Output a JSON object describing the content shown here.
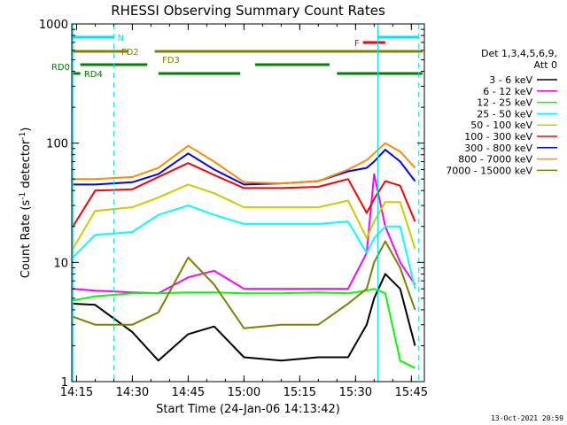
{
  "chart_data": {
    "type": "line",
    "title": "RHESSI Observing Summary Count Rates",
    "xlabel": "Start Time (24-Jan-06 14:13:42)",
    "ylabel": "Count Rate (s⁻¹ detector⁻¹)",
    "ylabel_main": "Count Rate (s",
    "ylabel_sup1": "-1",
    "ylabel_mid": " detector",
    "ylabel_sup2": "-1",
    "ylabel_end": ")",
    "y_scale": "log",
    "ylim": [
      1,
      1000
    ],
    "xlim": [
      "14:13:42",
      "15:48:30"
    ],
    "x_ticks": [
      "14:15",
      "14:30",
      "14:45",
      "15:00",
      "15:15",
      "15:30",
      "15:45"
    ],
    "y_ticks": [
      "1",
      "10",
      "100",
      "1000"
    ],
    "legend": {
      "placement": "right",
      "header_line1": "Det 1,3,4,5,6,9,",
      "header_line2": "Att 0"
    },
    "timestamp": "13-Oct-2021 20:59",
    "series": [
      {
        "name": "3 - 6 keV",
        "color": "#000000",
        "x": [
          "14:14",
          "14:20",
          "14:30",
          "14:37",
          "14:45",
          "14:52",
          "15:00",
          "15:10",
          "15:20",
          "15:28",
          "15:33",
          "15:35",
          "15:38",
          "15:42",
          "15:46"
        ],
        "y": [
          4.5,
          4.4,
          2.6,
          1.5,
          2.5,
          2.9,
          1.6,
          1.5,
          1.6,
          1.6,
          3,
          5,
          8,
          6,
          2
        ]
      },
      {
        "name": "6 - 12 keV",
        "color": "#ff00ff",
        "x": [
          "14:14",
          "14:20",
          "14:30",
          "14:37",
          "14:45",
          "14:52",
          "15:00",
          "15:10",
          "15:20",
          "15:28",
          "15:33",
          "15:35",
          "15:38",
          "15:42",
          "15:46"
        ],
        "y": [
          6,
          5.8,
          5.6,
          5.5,
          7.5,
          8.5,
          6,
          6,
          6,
          6,
          12,
          55,
          20,
          10,
          6.5
        ]
      },
      {
        "name": "12 - 25 keV",
        "color": "#00ff00",
        "x": [
          "14:14",
          "14:20",
          "14:30",
          "14:37",
          "14:45",
          "14:52",
          "15:00",
          "15:10",
          "15:20",
          "15:28",
          "15:33",
          "15:35",
          "15:38",
          "15:42",
          "15:46"
        ],
        "y": [
          4.8,
          5.2,
          5.5,
          5.5,
          5.6,
          5.6,
          5.5,
          5.5,
          5.6,
          5.5,
          5.8,
          6,
          5.5,
          1.5,
          1.3
        ]
      },
      {
        "name": "25 - 50 keV",
        "color": "#00ffff",
        "x": [
          "14:14",
          "14:20",
          "14:30",
          "14:37",
          "14:45",
          "14:52",
          "15:00",
          "15:10",
          "15:20",
          "15:28",
          "15:33",
          "15:35",
          "15:38",
          "15:42",
          "15:46"
        ],
        "y": [
          11,
          17,
          18,
          25,
          30,
          25,
          21,
          21,
          21,
          22,
          12,
          16,
          20,
          20,
          6
        ]
      },
      {
        "name": "50 - 100 keV",
        "color": "#cccc00",
        "x": [
          "14:14",
          "14:20",
          "14:30",
          "14:37",
          "14:45",
          "14:52",
          "15:00",
          "15:10",
          "15:20",
          "15:28",
          "15:33",
          "15:35",
          "15:38",
          "15:42",
          "15:46"
        ],
        "y": [
          13,
          27,
          29,
          35,
          45,
          38,
          29,
          29,
          29,
          33,
          16,
          22,
          32,
          32,
          13
        ]
      },
      {
        "name": "100 - 300 keV",
        "color": "#ff0000",
        "x": [
          "14:14",
          "14:20",
          "14:30",
          "14:37",
          "14:45",
          "14:52",
          "15:00",
          "15:10",
          "15:20",
          "15:28",
          "15:33",
          "15:35",
          "15:38",
          "15:42",
          "15:46"
        ],
        "y": [
          20,
          40,
          41,
          52,
          68,
          54,
          42,
          42,
          43,
          50,
          26,
          34,
          48,
          44,
          22
        ]
      },
      {
        "name": "300 - 800 keV",
        "color": "#0000ff",
        "x": [
          "14:14",
          "14:20",
          "14:30",
          "14:37",
          "14:45",
          "14:52",
          "15:00",
          "15:10",
          "15:20",
          "15:28",
          "15:33",
          "15:35",
          "15:38",
          "15:42",
          "15:46"
        ],
        "y": [
          45,
          45,
          47,
          55,
          82,
          60,
          45,
          46,
          48,
          58,
          62,
          70,
          88,
          70,
          48
        ]
      },
      {
        "name": "800 - 7000 keV",
        "color": "#ff8c00",
        "x": [
          "14:14",
          "14:20",
          "14:30",
          "14:37",
          "14:45",
          "14:52",
          "15:00",
          "15:10",
          "15:20",
          "15:28",
          "15:33",
          "15:35",
          "15:38",
          "15:42",
          "15:46"
        ],
        "y": [
          50,
          50,
          52,
          62,
          95,
          70,
          47,
          46,
          48,
          60,
          72,
          82,
          100,
          85,
          62
        ]
      },
      {
        "name": "7000 - 15000 keV",
        "color": "#808000",
        "x": [
          "14:14",
          "14:20",
          "14:30",
          "14:37",
          "14:45",
          "14:52",
          "15:00",
          "15:10",
          "15:20",
          "15:28",
          "15:33",
          "15:35",
          "15:38",
          "15:42",
          "15:46"
        ],
        "y": [
          3.5,
          3,
          3,
          3.8,
          11,
          6.5,
          2.8,
          3,
          3,
          4.5,
          6,
          10,
          15,
          9,
          4
        ]
      }
    ],
    "flags": [
      {
        "label": "N",
        "color": "#00e5ee",
        "segments": [
          [
            "14:14",
            "14:25"
          ],
          [
            "15:36",
            "15:47"
          ]
        ]
      },
      {
        "label": "F",
        "color": "#ff0000",
        "segments": [
          [
            "15:32",
            "15:38"
          ]
        ]
      },
      {
        "label": "FD2",
        "color": "#808000",
        "segments": [
          [
            "14:14",
            "14:29"
          ],
          [
            "14:36",
            "15:48"
          ]
        ]
      },
      {
        "label": "FD3",
        "color": "#808000",
        "segments": []
      },
      {
        "label": "RD0",
        "color": "#008000",
        "segments": [
          [
            "14:16",
            "14:34"
          ],
          [
            "15:03",
            "15:23"
          ]
        ]
      },
      {
        "label": "RD4",
        "color": "#008000",
        "segments": [
          [
            "14:14",
            "14:16"
          ],
          [
            "14:37",
            "14:59"
          ],
          [
            "15:25",
            "15:48"
          ]
        ]
      }
    ],
    "vertical_markers": [
      {
        "time": "14:14",
        "style": "solid",
        "color": "#00e5ee"
      },
      {
        "time": "14:25",
        "style": "dashed",
        "color": "#00e5ee"
      },
      {
        "time": "15:36",
        "style": "solid",
        "color": "#00e5ee"
      },
      {
        "time": "15:47",
        "style": "dashed",
        "color": "#00e5ee"
      }
    ],
    "grid": false
  }
}
